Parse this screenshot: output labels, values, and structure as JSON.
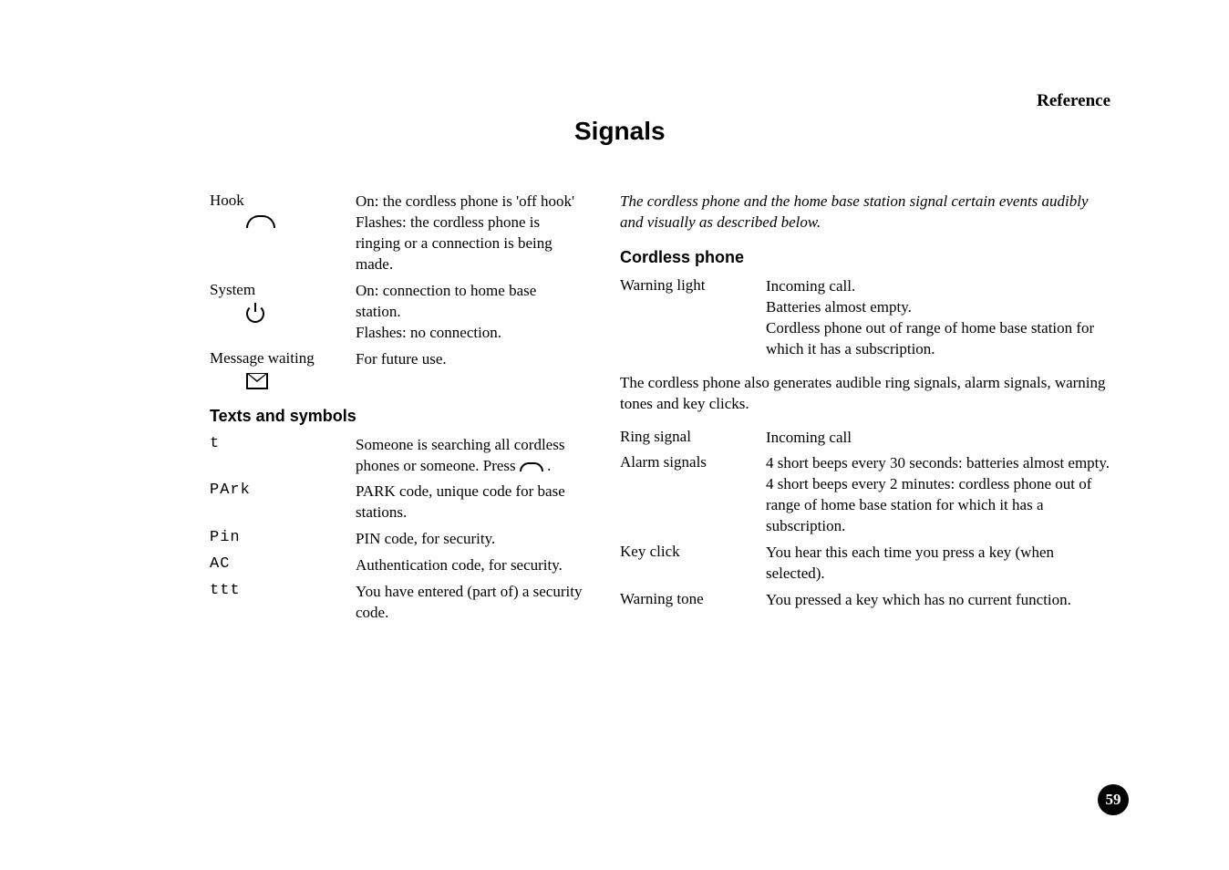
{
  "header": {
    "section": "Reference"
  },
  "title": "Signals",
  "left": {
    "hook": {
      "label": "Hook",
      "desc": "On: the cordless phone is 'off hook'\nFlashes: the cordless phone is ringing or a connection is being made."
    },
    "system": {
      "label": "System",
      "desc": "On: connection to home base station.\nFlashes: no connection."
    },
    "message": {
      "label": "Message waiting",
      "desc": "For future use."
    },
    "texts_title": "Texts and symbols",
    "rows": [
      {
        "sym": "t",
        "desc_pre": "Someone is searching all cordless phones or someone. Press ",
        "desc_post": " ."
      },
      {
        "sym": "PArk",
        "desc": "PARK code, unique code for base stations."
      },
      {
        "sym": "Pin",
        "desc": "PIN code, for security."
      },
      {
        "sym": "AC",
        "desc": "Authentication code, for security."
      },
      {
        "sym": "ttt",
        "desc": "You have entered (part of) a security code."
      }
    ]
  },
  "right": {
    "intro": "The cordless phone and the home base station signal certain events audibly and visually as described below.",
    "cordless_title": "Cordless phone",
    "warning_light": {
      "label": "Warning light",
      "desc": "Incoming call.\nBatteries almost empty.\nCordless phone out of range of home base station for which it has a subscription."
    },
    "mid_para": "The cordless phone also generates audible ring signals, alarm signals, warning tones and key clicks.",
    "ring": {
      "label": "Ring signal",
      "desc": "Incoming call"
    },
    "alarm": {
      "label": "Alarm signals",
      "desc": "4 short beeps every 30 seconds: batteries almost empty.\n4 short beeps every 2 minutes: cordless phone out of range of home base station for which it has a subscription."
    },
    "keyclick": {
      "label": "Key click",
      "desc": "You hear this each time you press a key (when selected)."
    },
    "warntone": {
      "label": "Warning tone",
      "desc": "You pressed a key which has no current function."
    }
  },
  "page": "59",
  "colors": {
    "bg": "#ffffff",
    "text": "#000000",
    "badge_bg": "#000000",
    "badge_fg": "#ffffff"
  }
}
